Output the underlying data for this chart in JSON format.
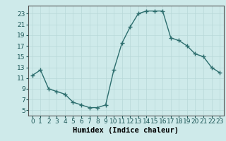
{
  "xlabel": "Humidex (Indice chaleur)",
  "x_values": [
    0,
    1,
    2,
    3,
    4,
    5,
    6,
    7,
    8,
    9,
    10,
    11,
    12,
    13,
    14,
    15,
    16,
    17,
    18,
    19,
    20,
    21,
    22,
    23
  ],
  "y_values": [
    11.5,
    12.5,
    9,
    8.5,
    8,
    6.5,
    6,
    5.5,
    5.5,
    6,
    12.5,
    17.5,
    20.5,
    23,
    23.5,
    23.5,
    23.5,
    18.5,
    18,
    17,
    15.5,
    15,
    13,
    12
  ],
  "y_ticks": [
    5,
    7,
    9,
    11,
    13,
    15,
    17,
    19,
    21,
    23
  ],
  "x_ticks": [
    0,
    1,
    2,
    3,
    4,
    5,
    6,
    7,
    8,
    9,
    10,
    11,
    12,
    13,
    14,
    15,
    16,
    17,
    18,
    19,
    20,
    21,
    22,
    23
  ],
  "ylim": [
    4,
    24.5
  ],
  "xlim": [
    -0.5,
    23.5
  ],
  "line_color": "#2d6e6e",
  "marker": "+",
  "bg_color": "#ceeaea",
  "grid_color": "#b8d8d8",
  "xlabel_fontsize": 7.5,
  "tick_fontsize": 6.5,
  "linewidth": 1.0,
  "markersize": 4,
  "markeredgewidth": 1.0
}
